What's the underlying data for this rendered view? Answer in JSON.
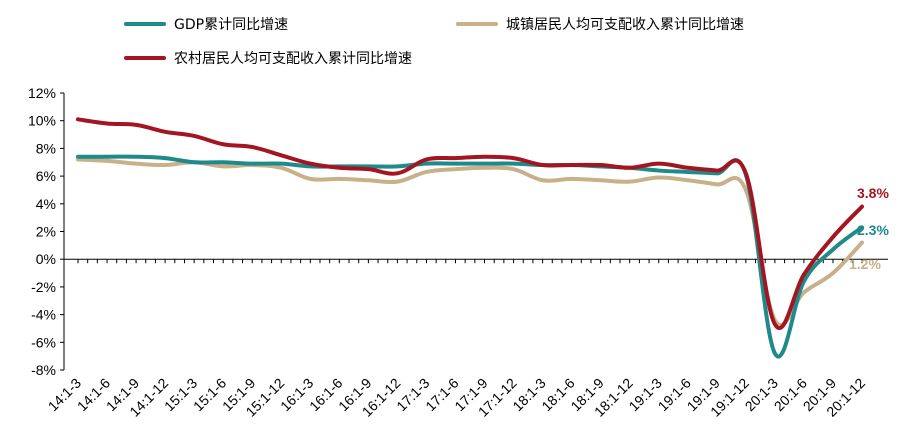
{
  "chart_data": {
    "type": "line",
    "title": "",
    "xlabel": "",
    "ylabel": "",
    "ylim": [
      -8,
      12
    ],
    "yticks": [
      12,
      10,
      8,
      6,
      4,
      2,
      0,
      -2,
      -4,
      -6,
      -8
    ],
    "ytick_labels": [
      "12%",
      "10%",
      "8%",
      "6%",
      "4%",
      "2%",
      "0%",
      "-2%",
      "-4%",
      "-6%",
      "-8%"
    ],
    "grid": false,
    "legend_position": "top",
    "categories": [
      "14:1-3",
      "14:1-6",
      "14:1-9",
      "14:1-12",
      "15:1-3",
      "15:1-6",
      "15:1-9",
      "15:1-12",
      "16:1-3",
      "16:1-6",
      "16:1-9",
      "16:1-12",
      "17:1-3",
      "17:1-6",
      "17:1-9",
      "17:1-12",
      "18:1-3",
      "18:1-6",
      "18:1-9",
      "18:1-12",
      "19:1-3",
      "19:1-6",
      "19:1-9",
      "19:1-12",
      "20:1-3",
      "20:1-6",
      "20:1-9",
      "20:1-12"
    ],
    "series": [
      {
        "name": "GDP累计同比增速",
        "color": "#1f8a8a",
        "values": [
          7.4,
          7.4,
          7.4,
          7.3,
          7.0,
          7.0,
          6.9,
          6.9,
          6.7,
          6.7,
          6.7,
          6.7,
          6.9,
          6.9,
          6.9,
          6.9,
          6.8,
          6.8,
          6.7,
          6.6,
          6.4,
          6.3,
          6.2,
          6.1,
          -6.8,
          -1.6,
          0.7,
          2.3
        ],
        "end_label": "2.3%"
      },
      {
        "name": "城镇居民人均可支配收入累计同比增速",
        "color": "#c8b08a",
        "values": [
          7.2,
          7.1,
          6.9,
          6.8,
          7.0,
          6.7,
          6.8,
          6.6,
          5.8,
          5.8,
          5.7,
          5.6,
          6.3,
          6.5,
          6.6,
          6.5,
          5.7,
          5.8,
          5.7,
          5.6,
          5.9,
          5.7,
          5.4,
          5.0,
          -4.4,
          -2.4,
          -1.0,
          1.2
        ],
        "end_label": "1.2%"
      },
      {
        "name": "农村居民人均可支配收入累计同比增速",
        "color": "#a31621",
        "values": [
          10.1,
          9.8,
          9.7,
          9.2,
          8.9,
          8.3,
          8.1,
          7.5,
          6.9,
          6.6,
          6.5,
          6.2,
          7.2,
          7.3,
          7.4,
          7.3,
          6.8,
          6.8,
          6.8,
          6.6,
          6.9,
          6.6,
          6.4,
          6.2,
          -4.7,
          -1.1,
          1.6,
          3.8
        ],
        "end_label": "3.8%"
      }
    ]
  }
}
